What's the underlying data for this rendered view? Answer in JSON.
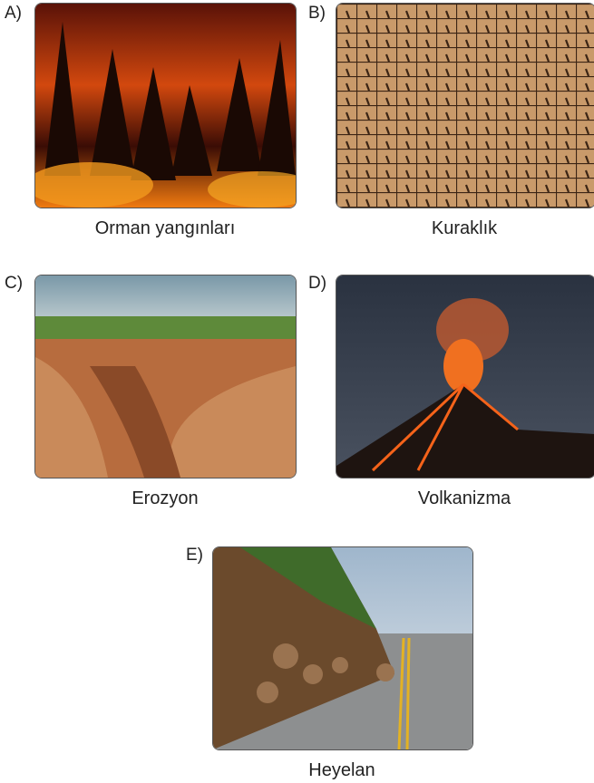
{
  "options": [
    {
      "letter": "A)",
      "caption": "Orman yangınları"
    },
    {
      "letter": "B)",
      "caption": "Kuraklık"
    },
    {
      "letter": "C)",
      "caption": "Erozyon"
    },
    {
      "letter": "D)",
      "caption": "Volkanizma"
    },
    {
      "letter": "E)",
      "caption": "Heyelan"
    }
  ]
}
